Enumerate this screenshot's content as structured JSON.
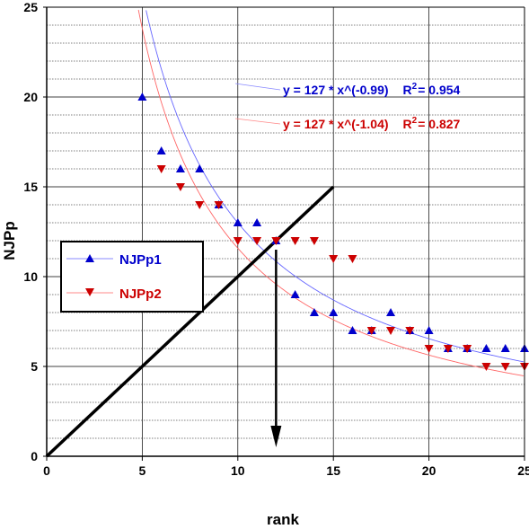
{
  "chart_data": {
    "type": "scatter",
    "xlabel": "rank",
    "ylabel": "NJPp",
    "xlim": [
      0,
      25
    ],
    "ylim": [
      0,
      25
    ],
    "x_ticks": [
      "0",
      "5",
      "10",
      "15",
      "20",
      "25"
    ],
    "y_ticks": [
      "0",
      "5",
      "10",
      "15",
      "20",
      "25"
    ],
    "grid": true,
    "legend": {
      "position": "left-middle"
    },
    "series": [
      {
        "name": "NJPp1",
        "marker": "triangle-up",
        "color": "#0000cc",
        "x": [
          5,
          6,
          7,
          8,
          9,
          10,
          11,
          12,
          13,
          14,
          15,
          16,
          17,
          18,
          19,
          20,
          21,
          22,
          23,
          24,
          25
        ],
        "y": [
          20,
          17,
          16,
          16,
          14,
          13,
          13,
          12,
          9,
          8,
          8,
          7,
          7,
          8,
          7,
          7,
          6,
          6,
          6,
          6,
          6
        ]
      },
      {
        "name": "NJPp2",
        "marker": "triangle-down",
        "color": "#cc0000",
        "x": [
          6,
          7,
          8,
          9,
          10,
          11,
          12,
          13,
          14,
          15,
          16,
          17,
          18,
          19,
          20,
          21,
          22,
          23,
          24,
          25
        ],
        "y": [
          16,
          15,
          14,
          14,
          12,
          12,
          12,
          12,
          12,
          11,
          11,
          7,
          7,
          7,
          6,
          6,
          6,
          5,
          5,
          5
        ]
      }
    ],
    "fits": [
      {
        "equation": "y = 127 * x^(-0.99)",
        "r2_label": "R",
        "r2_sup": "2",
        "r2_value": "= 0.954",
        "a": 127,
        "b": -0.99,
        "color": "#0000cc"
      },
      {
        "equation": "y = 127 * x^(-1.04)",
        "r2_label": "R",
        "r2_sup": "2",
        "r2_value": "= 0.827",
        "a": 127,
        "b": -1.04,
        "color": "#cc0000"
      }
    ],
    "annotations": {
      "diagonal": {
        "x": [
          0,
          15
        ],
        "y": [
          0,
          15
        ]
      },
      "arrow": {
        "x": 12,
        "y_from": 11.5,
        "y_to": 0.5
      }
    }
  }
}
